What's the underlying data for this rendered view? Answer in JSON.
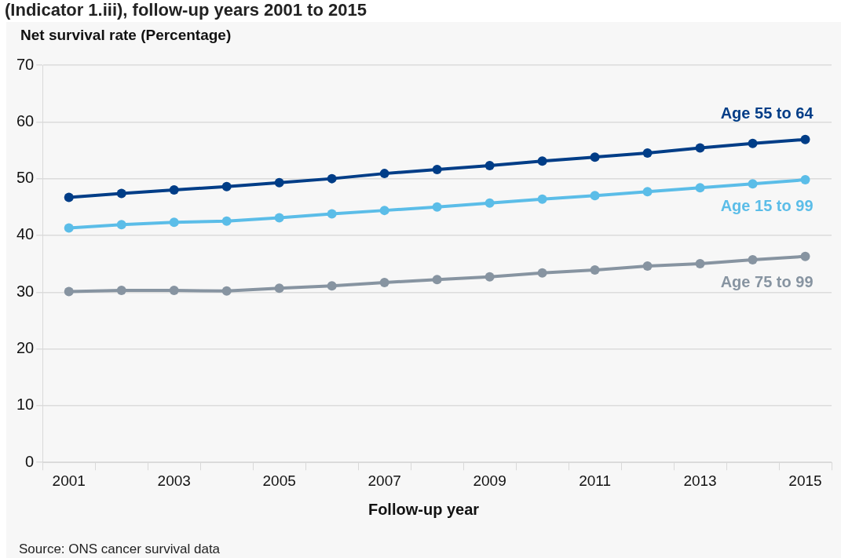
{
  "chart_data": {
    "type": "line",
    "title": "(Indicator 1.iii), follow-up years 2001 to 2015",
    "xlabel": "Follow-up year",
    "ylabel": "Net survival rate (Percentage)",
    "categories": [
      "2001",
      null,
      "2003",
      null,
      "2005",
      null,
      "2007",
      null,
      "2009",
      null,
      "2011",
      null,
      "2013",
      null,
      "2015"
    ],
    "series": [
      {
        "name": "Age 55 to 64",
        "color": "#003d87",
        "values": [
          46.7,
          47.4,
          48.0,
          48.6,
          49.3,
          50.0,
          50.9,
          51.6,
          52.3,
          53.1,
          53.8,
          54.5,
          55.4,
          56.2,
          56.9
        ]
      },
      {
        "name": "Age 15 to 99",
        "color": "#5bbde8",
        "values": [
          41.3,
          41.9,
          42.3,
          42.5,
          43.1,
          43.8,
          44.4,
          45.0,
          45.7,
          46.4,
          47.0,
          47.7,
          48.4,
          49.1,
          49.8
        ]
      },
      {
        "name": "Age 75 to 99",
        "color": "#8794a1",
        "values": [
          30.1,
          30.3,
          30.3,
          30.2,
          30.7,
          31.1,
          31.7,
          32.2,
          32.7,
          33.4,
          33.9,
          34.6,
          35.0,
          35.7,
          36.3
        ]
      }
    ],
    "ylim": [
      0,
      70
    ],
    "yticks": [
      0,
      10,
      20,
      30,
      40,
      50,
      60,
      70
    ],
    "grid": "y",
    "legend": false,
    "marker": "circle",
    "line_style": "solid",
    "annotations": [
      "Source: ONS cancer survival data"
    ]
  }
}
